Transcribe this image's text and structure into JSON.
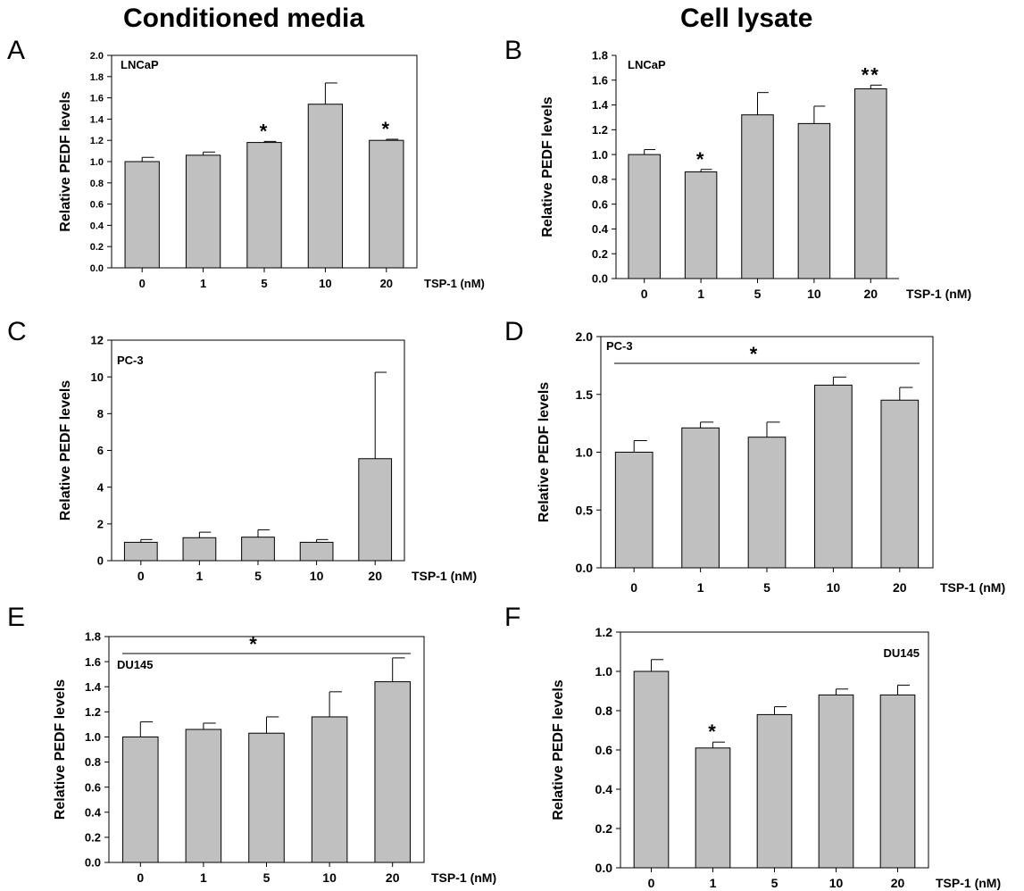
{
  "headers": {
    "left": "Conditioned media",
    "right": "Cell lysate"
  },
  "chart_data": [
    {
      "panel": "A",
      "type": "bar",
      "cell_line": "LNCaP",
      "categories": [
        "0",
        "1",
        "5",
        "10",
        "20"
      ],
      "values": [
        1.0,
        1.06,
        1.18,
        1.54,
        1.2
      ],
      "errors": [
        0.04,
        0.03,
        0.01,
        0.2,
        0.01
      ],
      "significance": [
        "",
        "",
        "*",
        "",
        "*"
      ],
      "ylabel": "Relative PEDF levels",
      "xlabel": "TSP-1 (nM)",
      "ylim": [
        0,
        2.0
      ],
      "yticks": [
        "0.0",
        "0.2",
        "0.4",
        "0.6",
        "0.8",
        "1.0",
        "1.2",
        "1.4",
        "1.6",
        "1.8",
        "2.0"
      ],
      "bar_color": "#c0c0c0"
    },
    {
      "panel": "B",
      "type": "bar",
      "cell_line": "LNCaP",
      "categories": [
        "0",
        "1",
        "5",
        "10",
        "20"
      ],
      "values": [
        1.0,
        0.86,
        1.32,
        1.25,
        1.53
      ],
      "errors": [
        0.04,
        0.02,
        0.18,
        0.14,
        0.03
      ],
      "significance": [
        "",
        "*",
        "",
        "",
        "**"
      ],
      "ylabel": "Relative PEDF levels",
      "xlabel": "TSP-1 (nM)",
      "ylim": [
        0,
        1.8
      ],
      "yticks": [
        "0.0",
        "0.2",
        "0.4",
        "0.6",
        "0.8",
        "1.0",
        "1.2",
        "1.4",
        "1.6",
        "1.8"
      ],
      "bar_color": "#c0c0c0"
    },
    {
      "panel": "C",
      "type": "bar",
      "cell_line": "PC-3",
      "categories": [
        "0",
        "1",
        "5",
        "10",
        "20"
      ],
      "values": [
        1.0,
        1.25,
        1.28,
        1.0,
        5.55
      ],
      "errors": [
        0.15,
        0.3,
        0.4,
        0.15,
        4.7
      ],
      "significance": [
        "",
        "",
        "",
        "",
        ""
      ],
      "ylabel": "Relative PEDF levels",
      "xlabel": "TSP-1 (nM)",
      "ylim": [
        0,
        12
      ],
      "yticks": [
        "0",
        "2",
        "4",
        "6",
        "8",
        "10",
        "12"
      ],
      "bar_color": "#c0c0c0"
    },
    {
      "panel": "D",
      "type": "bar",
      "cell_line": "PC-3",
      "categories": [
        "0",
        "1",
        "5",
        "10",
        "20"
      ],
      "values": [
        1.0,
        1.21,
        1.13,
        1.58,
        1.45
      ],
      "errors": [
        0.1,
        0.05,
        0.13,
        0.07,
        0.11
      ],
      "significance": [],
      "bracket": "*",
      "ylabel": "Relative PEDF levels",
      "xlabel": "TSP-1 (nM)",
      "ylim": [
        0,
        2.0
      ],
      "yticks": [
        "0.0",
        "0.5",
        "1.0",
        "1.5",
        "2.0"
      ],
      "bar_color": "#c0c0c0"
    },
    {
      "panel": "E",
      "type": "bar",
      "cell_line": "DU145",
      "categories": [
        "0",
        "1",
        "5",
        "10",
        "20"
      ],
      "values": [
        1.0,
        1.06,
        1.03,
        1.16,
        1.44
      ],
      "errors": [
        0.12,
        0.05,
        0.13,
        0.2,
        0.19
      ],
      "significance": [],
      "bracket": "*",
      "ylabel": "Relative PEDF levels",
      "xlabel": "TSP-1 (nM)",
      "ylim": [
        0,
        1.8
      ],
      "yticks": [
        "0.0",
        "0.2",
        "0.4",
        "0.6",
        "0.8",
        "1.0",
        "1.2",
        "1.4",
        "1.6",
        "1.8"
      ],
      "bar_color": "#c0c0c0"
    },
    {
      "panel": "F",
      "type": "bar",
      "cell_line": "DU145",
      "categories": [
        "0",
        "1",
        "5",
        "10",
        "20"
      ],
      "values": [
        1.0,
        0.61,
        0.78,
        0.88,
        0.88
      ],
      "errors": [
        0.06,
        0.03,
        0.04,
        0.03,
        0.05
      ],
      "significance": [
        "",
        "*",
        "",
        "",
        ""
      ],
      "ylabel": "Relative PEDF levels",
      "xlabel": "TSP-1 (nM)",
      "ylim": [
        0,
        1.2
      ],
      "yticks": [
        "0.0",
        "0.2",
        "0.4",
        "0.6",
        "0.8",
        "1.0",
        "1.2"
      ],
      "bar_color": "#c0c0c0"
    }
  ]
}
